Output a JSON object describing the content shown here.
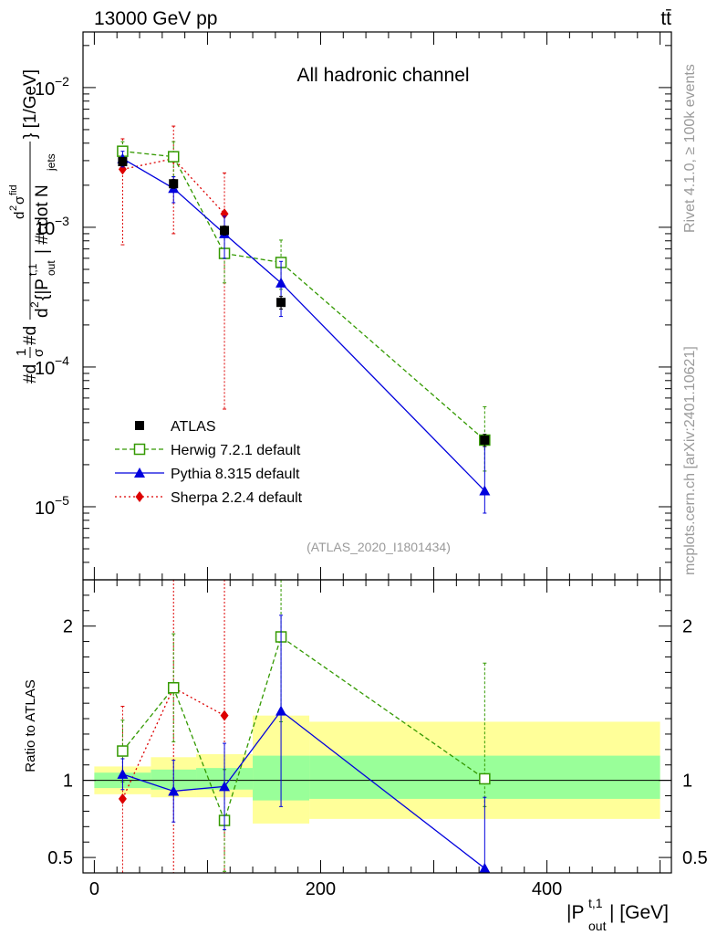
{
  "header": {
    "left": "13000 GeV pp",
    "right": "tt̄"
  },
  "side": {
    "rivet": "Rivet 4.1.0, ≥ 100k events",
    "mcplots": "mcplots.cern.ch [arXiv:2401.10621]"
  },
  "chart_data": [
    {
      "type": "line",
      "panel": "main",
      "title": "All hadronic channel",
      "watermark": "(ATLAS_2020_I1801434)",
      "ylabel": "#d\\frac{1}{\\sigma}#d\\frac{d^{2}\\sigma^{fid}}{d^{2} {|P_{out}^{t,1}| #cdot N_{jets}} [1/GeV]",
      "ylabel_parts": {
        "a": "#d",
        "frac1_num": "1",
        "frac1_den": "σ",
        "b": "#d",
        "frac2_num": "d",
        "frac2_num_sup": "2",
        "frac2_num_sym": "σ",
        "frac2_num_supsym": "fid",
        "den_d": "d",
        "den_sup": "2",
        "den_mid": "{|P",
        "den_sub": "out",
        "den_sup2": "t,1",
        "den_end": "| #cdot N",
        "den_sub2": "jets",
        "close": "} [1/GeV]"
      },
      "yscale": "log",
      "ylim": [
        3e-06,
        0.025
      ],
      "y_ticks": [
        {
          "value": 1e-05,
          "base": "10",
          "exp": "−5"
        },
        {
          "value": 0.0001,
          "base": "10",
          "exp": "−4"
        },
        {
          "value": 0.001,
          "base": "10",
          "exp": "−3"
        },
        {
          "value": 0.01,
          "base": "10",
          "exp": "−2"
        }
      ],
      "xlim": [
        -10,
        510
      ],
      "legend_position": "bottom-left",
      "series": [
        {
          "name": "ATLAS",
          "color": "#000000",
          "marker": "filled-square",
          "line": "none",
          "x": [
            25,
            70,
            115,
            165,
            345
          ],
          "y": [
            0.00295,
            0.00205,
            0.00095,
            0.00029,
            3e-05
          ],
          "err_lo": [
            0.0002,
            0.00015,
            7e-05,
            3e-05,
            3e-06
          ],
          "err_hi": [
            0.0002,
            0.00015,
            7e-05,
            3e-05,
            3e-06
          ]
        },
        {
          "name": "Herwig 7.2.1 default",
          "color": "#339900",
          "marker": "open-square",
          "line": "dashed",
          "x": [
            25,
            70,
            115,
            165,
            345
          ],
          "y": [
            0.0035,
            0.0032,
            0.00065,
            0.00056,
            3e-05
          ],
          "err_lo": [
            0.0006,
            0.0009,
            0.00025,
            0.0002,
            1.2e-05
          ],
          "err_hi": [
            0.0006,
            0.0009,
            0.00025,
            0.00025,
            2.2e-05
          ]
        },
        {
          "name": "Pythia 8.315 default",
          "color": "#0000dd",
          "marker": "filled-triangle",
          "line": "solid",
          "x": [
            25,
            70,
            115,
            165,
            345
          ],
          "y": [
            0.0031,
            0.0019,
            0.0009,
            0.0004,
            1.3e-05
          ],
          "err_lo": [
            0.0004,
            0.0004,
            0.0003,
            0.00017,
            4e-06
          ],
          "err_hi": [
            0.0004,
            0.0004,
            0.0003,
            0.00017,
            1.4e-05
          ]
        },
        {
          "name": "Sherpa 2.2.4 default",
          "color": "#dd0000",
          "marker": "filled-diamond",
          "line": "dotted",
          "x": [
            25,
            70,
            115
          ],
          "y": [
            0.0026,
            0.0031,
            0.00125
          ],
          "err_lo": [
            0.00185,
            0.0022,
            0.0012
          ],
          "err_hi": [
            0.0017,
            0.0022,
            0.0012
          ]
        }
      ]
    },
    {
      "type": "line",
      "panel": "ratio",
      "ylabel": "Ratio to ATLAS",
      "xlabel": "|P_{out}^{t,1}| [GeV]",
      "xlabel_parts": {
        "pre": "|P",
        "sup": "t,1",
        "sub": "out",
        "post": "| [GeV]"
      },
      "ylim": [
        0.4,
        2.3
      ],
      "y_ticks": [
        0.5,
        1,
        2
      ],
      "y_tick_labels": [
        "0.5",
        "1",
        "2"
      ],
      "xlim": [
        -10,
        510
      ],
      "x_ticks": [
        0,
        200,
        400
      ],
      "x_tick_labels": [
        "0",
        "200",
        "400"
      ],
      "bands": [
        {
          "xmin": 0,
          "xmax": 50,
          "inner": [
            0.95,
            1.05
          ],
          "outer": [
            0.91,
            1.09
          ]
        },
        {
          "xmin": 50,
          "xmax": 90,
          "inner": [
            0.94,
            1.07
          ],
          "outer": [
            0.89,
            1.15
          ]
        },
        {
          "xmin": 90,
          "xmax": 140,
          "inner": [
            0.94,
            1.08
          ],
          "outer": [
            0.89,
            1.17
          ]
        },
        {
          "xmin": 140,
          "xmax": 190,
          "inner": [
            0.87,
            1.16
          ],
          "outer": [
            0.72,
            1.42
          ]
        },
        {
          "xmin": 190,
          "xmax": 500,
          "inner": [
            0.88,
            1.16
          ],
          "outer": [
            0.75,
            1.38
          ]
        }
      ],
      "series": [
        {
          "name": "Herwig 7.2.1 default",
          "color": "#339900",
          "marker": "open-square",
          "line": "dashed",
          "x": [
            25,
            70,
            115,
            165,
            345
          ],
          "y": [
            1.19,
            1.6,
            0.74,
            1.93,
            1.01
          ],
          "err_lo": [
            0.2,
            0.35,
            0.33,
            0.55,
            0.18
          ],
          "err_hi": [
            0.2,
            0.35,
            0.33,
            0.55,
            0.75
          ]
        },
        {
          "name": "Pythia 8.315 default",
          "color": "#0000dd",
          "marker": "filled-triangle",
          "line": "solid",
          "x": [
            25,
            70,
            115,
            165,
            345
          ],
          "y": [
            1.04,
            0.93,
            0.96,
            1.45,
            0.43
          ],
          "err_lo": [
            0.1,
            0.2,
            0.28,
            0.62,
            0.05
          ],
          "err_hi": [
            0.1,
            0.2,
            0.28,
            0.62,
            0.46
          ]
        },
        {
          "name": "Sherpa 2.2.4 default",
          "color": "#dd0000",
          "marker": "filled-diamond",
          "line": "dotted",
          "x": [
            25,
            70,
            115
          ],
          "y": [
            0.88,
            1.6,
            1.42
          ],
          "err_lo": [
            0.6,
            1.2,
            1.3
          ],
          "err_hi": [
            0.6,
            1.2,
            1.3
          ]
        }
      ]
    }
  ]
}
